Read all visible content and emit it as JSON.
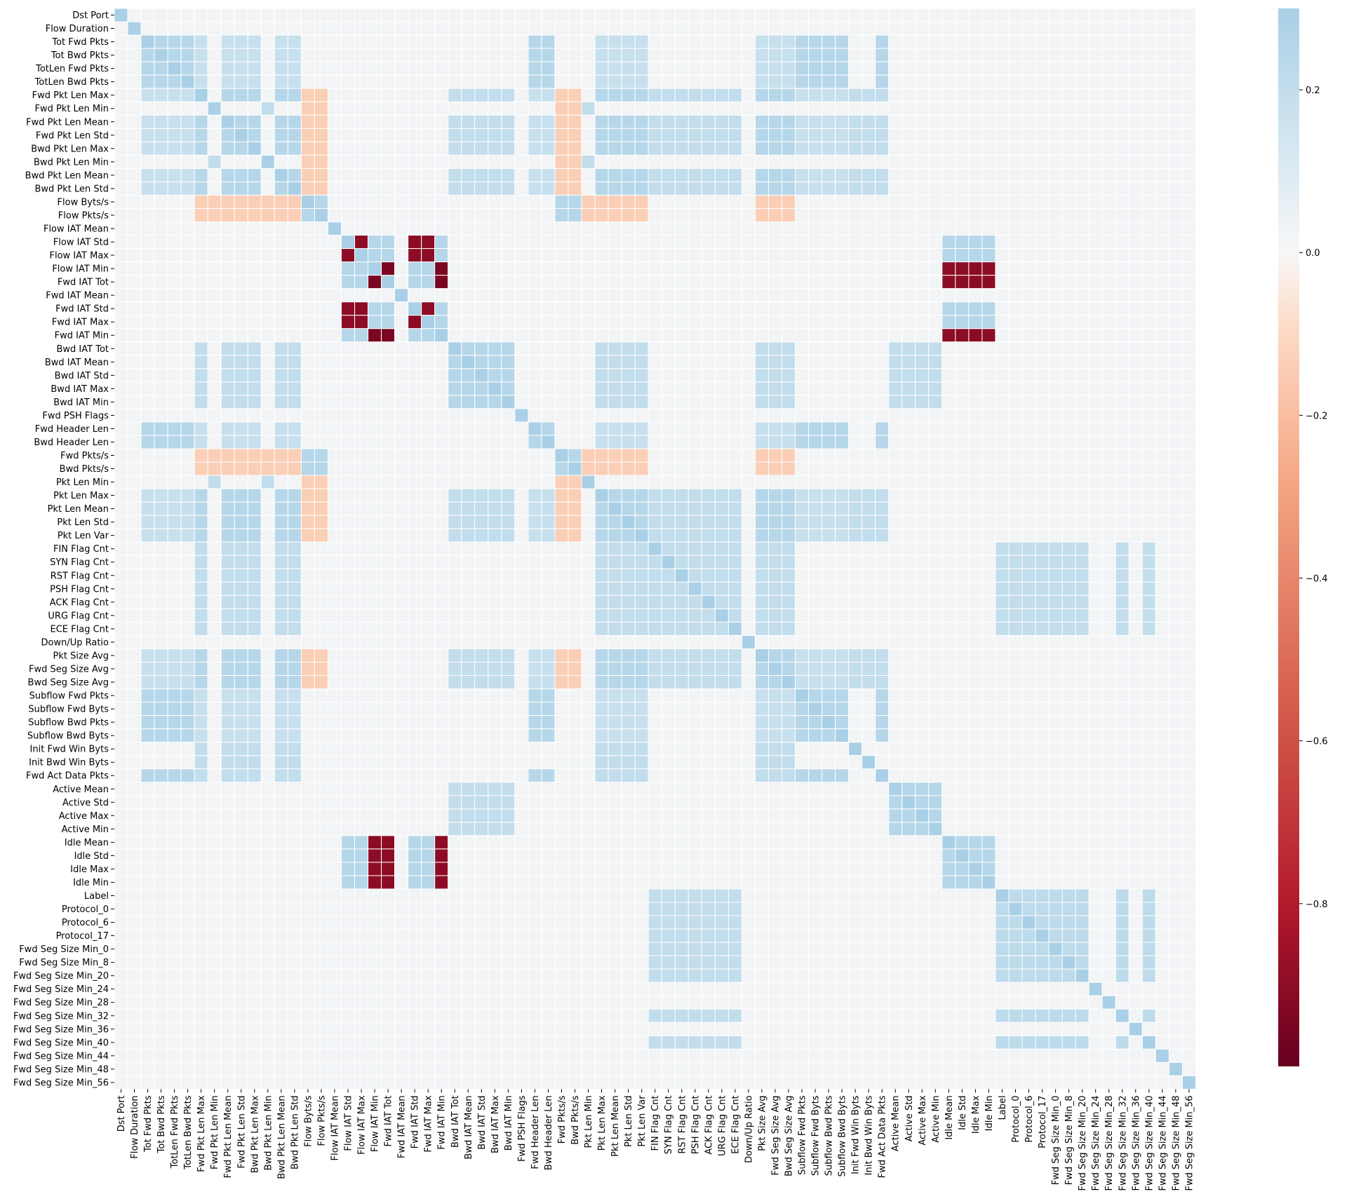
{
  "chart_data": {
    "type": "heatmap",
    "title": "",
    "xlabel": "",
    "ylabel": "",
    "labels": [
      "Dst Port",
      "Flow Duration",
      "Tot Fwd Pkts",
      "Tot Bwd Pkts",
      "TotLen Fwd Pkts",
      "TotLen Bwd Pkts",
      "Fwd Pkt Len Max",
      "Fwd Pkt Len Min",
      "Fwd Pkt Len Mean",
      "Fwd Pkt Len Std",
      "Bwd Pkt Len Max",
      "Bwd Pkt Len Min",
      "Bwd Pkt Len Mean",
      "Bwd Pkt Len Std",
      "Flow Byts/s",
      "Flow Pkts/s",
      "Flow IAT Mean",
      "Flow IAT Std",
      "Flow IAT Max",
      "Flow IAT Min",
      "Fwd IAT Tot",
      "Fwd IAT Mean",
      "Fwd IAT Std",
      "Fwd IAT Max",
      "Fwd IAT Min",
      "Bwd IAT Tot",
      "Bwd IAT Mean",
      "Bwd IAT Std",
      "Bwd IAT Max",
      "Bwd IAT Min",
      "Fwd PSH Flags",
      "Fwd Header Len",
      "Bwd Header Len",
      "Fwd Pkts/s",
      "Bwd Pkts/s",
      "Pkt Len Min",
      "Pkt Len Max",
      "Pkt Len Mean",
      "Pkt Len Std",
      "Pkt Len Var",
      "FIN Flag Cnt",
      "SYN Flag Cnt",
      "RST Flag Cnt",
      "PSH Flag Cnt",
      "ACK Flag Cnt",
      "URG Flag Cnt",
      "ECE Flag Cnt",
      "Down/Up Ratio",
      "Pkt Size Avg",
      "Fwd Seg Size Avg",
      "Bwd Seg Size Avg",
      "Subflow Fwd Pkts",
      "Subflow Fwd Byts",
      "Subflow Bwd Pkts",
      "Subflow Bwd Byts",
      "Init Fwd Win Byts",
      "Init Bwd Win Byts",
      "Fwd Act Data Pkts",
      "Active Mean",
      "Active Std",
      "Active Max",
      "Active Min",
      "Idle Mean",
      "Idle Std",
      "Idle Max",
      "Idle Min",
      "Label",
      "Protocol_0",
      "Protocol_6",
      "Protocol_17",
      "Fwd Seg Size Min_0",
      "Fwd Seg Size Min_8",
      "Fwd Seg Size Min_20",
      "Fwd Seg Size Min_24",
      "Fwd Seg Size Min_28",
      "Fwd Seg Size Min_32",
      "Fwd Seg Size Min_36",
      "Fwd Seg Size Min_40",
      "Fwd Seg Size Min_44",
      "Fwd Seg Size Min_48",
      "Fwd Seg Size Min_56"
    ],
    "diagonal_value": 1.0,
    "value_groups": [
      {
        "indices": [
          2,
          3,
          4,
          5,
          31,
          32,
          51,
          52,
          53,
          54,
          57
        ],
        "within": 0.25,
        "to_group": {
          "length": 0.18
        }
      },
      {
        "indices": [
          6,
          8,
          9,
          10,
          12,
          13,
          36,
          37,
          38,
          39,
          48,
          49,
          50
        ],
        "within": 0.25,
        "to_group": {
          "flags": 0.2,
          "bwdiat": 0.2,
          "window": 0.2
        }
      },
      {
        "indices": [
          7,
          11,
          35
        ],
        "within": 0.2,
        "to_group": {
          "rate": -0.15
        }
      },
      {
        "indices": [
          14,
          15,
          33,
          34
        ],
        "within": 0.25,
        "to_group": {
          "length": -0.15
        }
      },
      {
        "indices": [
          17,
          18,
          22,
          23
        ],
        "within": -0.9,
        "to_group": {
          "min": 0.25,
          "idle": 0.25
        }
      },
      {
        "indices": [
          19,
          24,
          20
        ],
        "within": -0.95,
        "to_group": {
          "idle": -0.9
        }
      },
      {
        "indices": [
          25,
          26,
          27,
          28,
          29
        ],
        "within": 0.25,
        "to_group": {
          "active": 0.2
        }
      },
      {
        "indices": [
          40,
          41,
          42,
          43,
          44,
          45,
          46
        ],
        "within": 0.2,
        "to_group": {
          "proto": 0.2
        }
      },
      {
        "indices": [
          58,
          59,
          60,
          61
        ],
        "within": 0.25,
        "to_group": {}
      },
      {
        "indices": [
          62,
          63,
          64,
          65
        ],
        "within": 0.25,
        "to_group": {}
      },
      {
        "indices": [
          66,
          67,
          68,
          69,
          70,
          71,
          72,
          75,
          77
        ],
        "within": 0.22,
        "to_group": {}
      }
    ],
    "colorbar": {
      "min": -1.0,
      "max": 0.3,
      "ticks": [
        0.2,
        0.0,
        -0.2,
        -0.4,
        -0.6,
        -0.8
      ],
      "tick_labels": [
        "0.2",
        "0.0",
        "−0.2",
        "−0.4",
        "−0.6",
        "−0.8"
      ]
    },
    "colors": {
      "strong_negative": "#67001f",
      "negative": "#d6604d",
      "light_negative": "#fdbf9f",
      "zero": "#f7f7f7",
      "light_positive": "#d1e5f0",
      "positive": "#a9d0e6"
    },
    "legend_placement": "right",
    "grid": true
  }
}
